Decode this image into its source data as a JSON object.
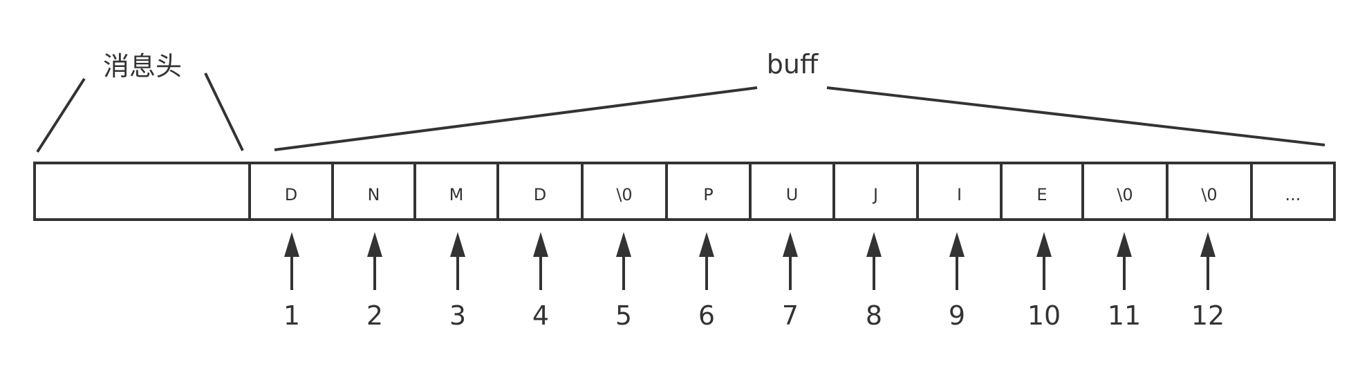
{
  "labels": {
    "header": "消息头",
    "buffer": "buff"
  },
  "cells": [
    "D",
    "N",
    "M",
    "D",
    "\\0",
    "P",
    "U",
    "J",
    "I",
    "E",
    "\\0",
    "\\0",
    "..."
  ],
  "pointers": [
    "1",
    "2",
    "3",
    "4",
    "5",
    "6",
    "7",
    "8",
    "9",
    "10",
    "11",
    "12"
  ],
  "colors": {
    "stroke": "#333333",
    "background": "#ffffff"
  }
}
